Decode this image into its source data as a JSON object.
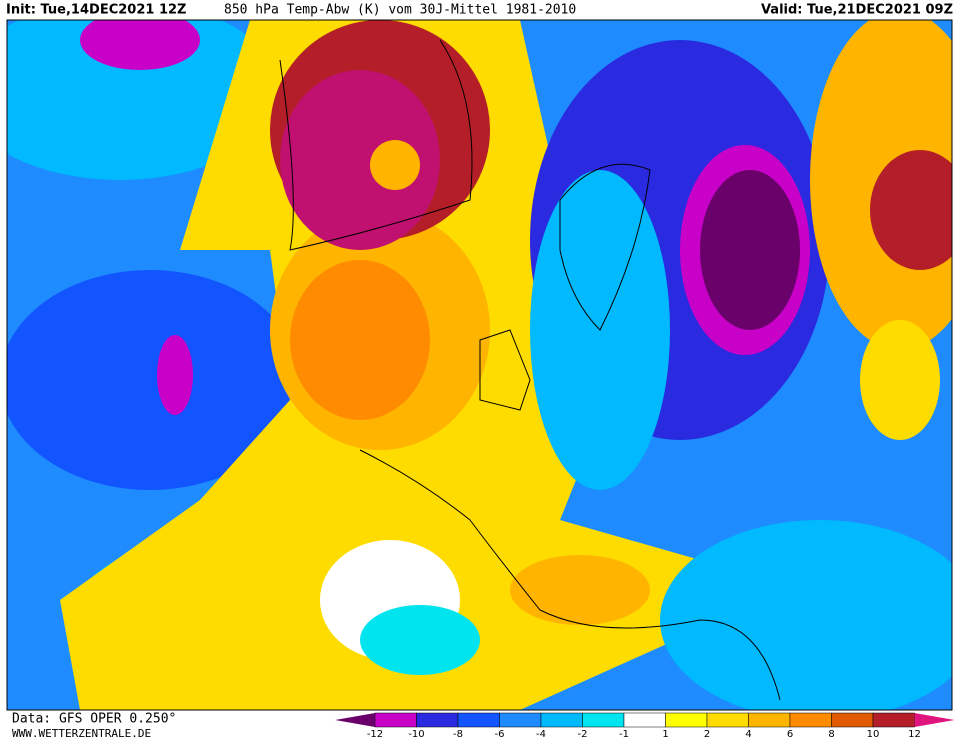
{
  "header": {
    "init": "Init: Tue,14DEC2021 12Z",
    "title": "850 hPa Temp-Abw (K) vom 30J-Mittel 1981-2010",
    "valid": "Valid: Tue,21DEC2021 09Z"
  },
  "footer": {
    "source": "Data: GFS OPER 0.250°",
    "site": "WWW.WETTERZENTRALE.DE"
  },
  "colorbar": {
    "ticks": [
      -12,
      -10,
      -8,
      -6,
      -4,
      -2,
      -1,
      1,
      2,
      4,
      6,
      8,
      10,
      12
    ],
    "colors": [
      "#6a006a",
      "#c800c8",
      "#2a2ae0",
      "#1255ff",
      "#1e8cff",
      "#00b9ff",
      "#00e4f0",
      "#ffffff",
      "#ffff00",
      "#ffdc00",
      "#ffb400",
      "#ff8c00",
      "#e05a00",
      "#b41e28",
      "#e0147e"
    ]
  }
}
